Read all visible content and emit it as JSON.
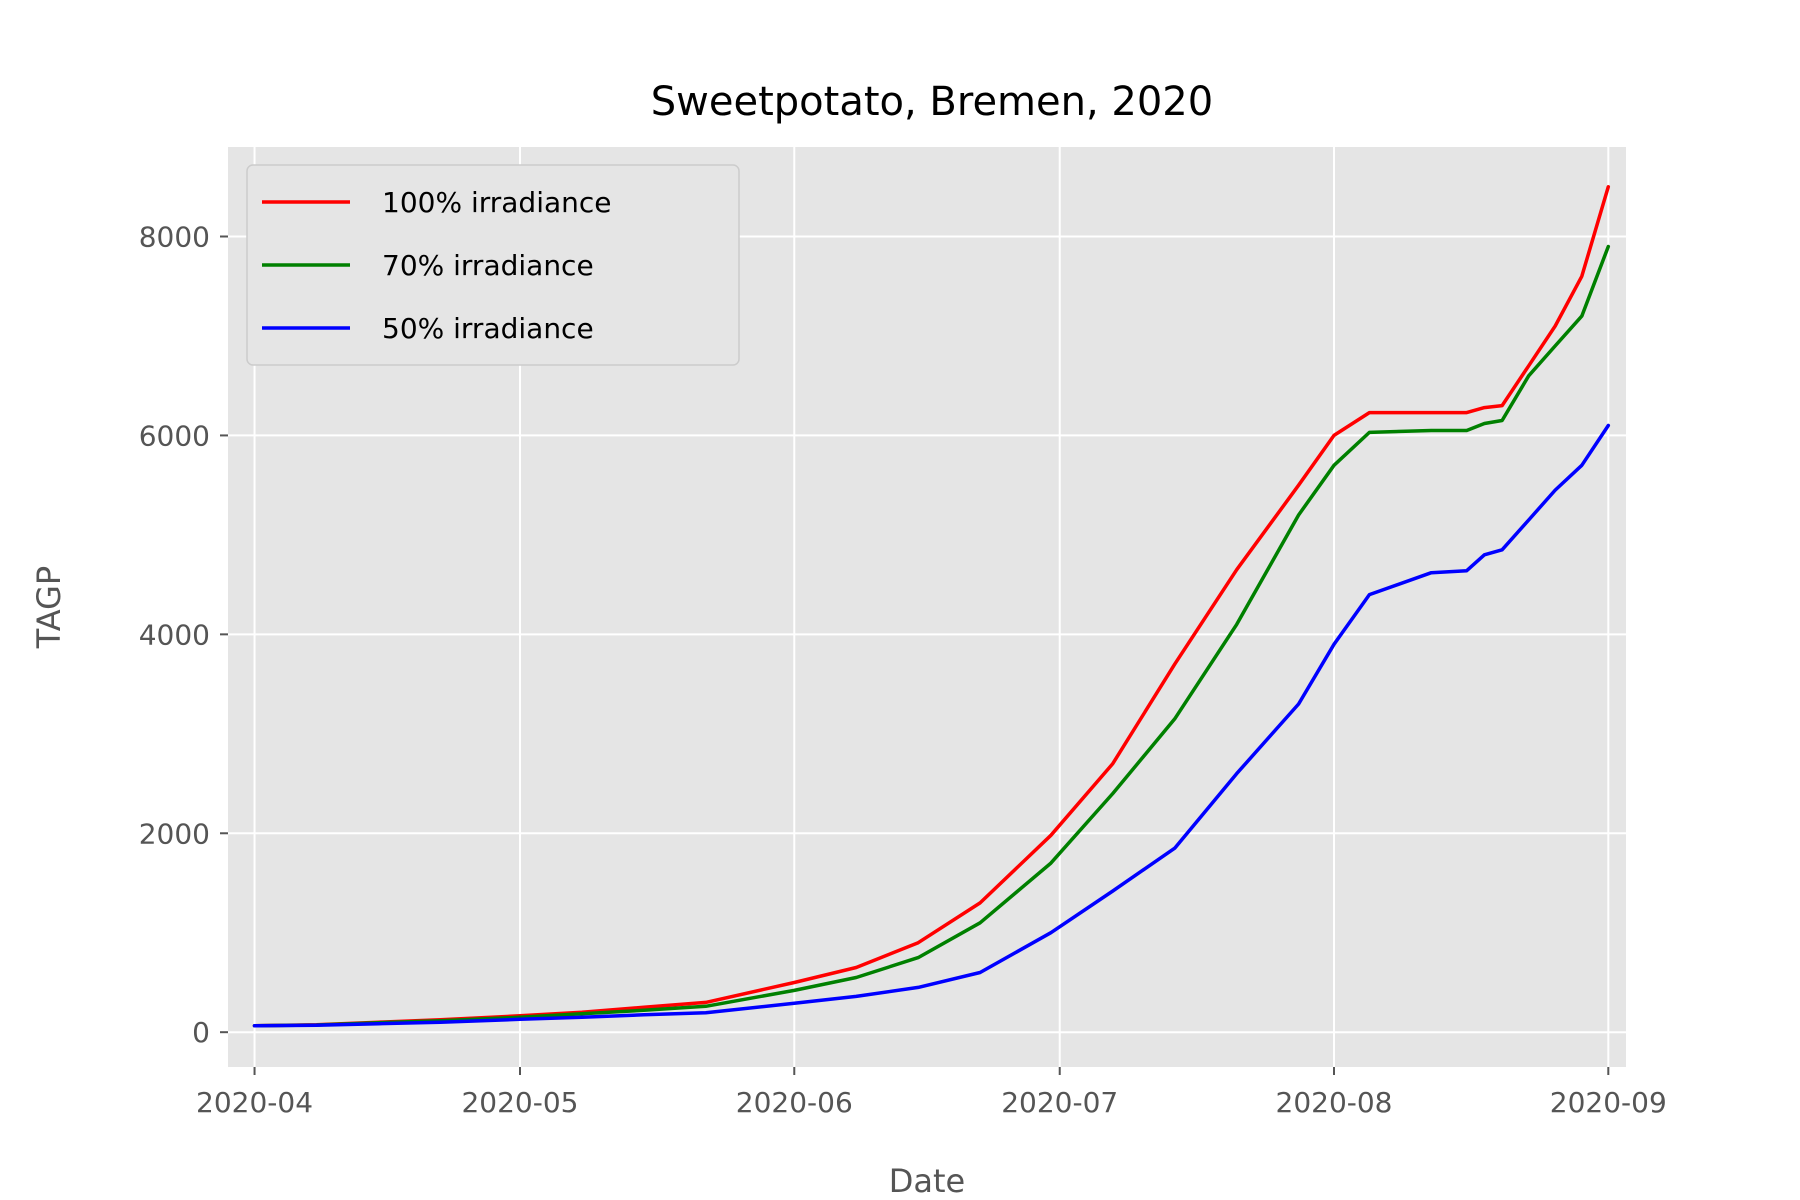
{
  "chart_data": {
    "type": "line",
    "title": "Sweetpotato, Bremen, 2020",
    "xlabel": "Date",
    "ylabel": "TAGP",
    "x_ticks": [
      "2020-04",
      "2020-05",
      "2020-06",
      "2020-07",
      "2020-08",
      "2020-09"
    ],
    "y_ticks": [
      "0",
      "2000",
      "4000",
      "6000",
      "8000"
    ],
    "xlim": [
      "2020-03-29",
      "2020-09-03"
    ],
    "ylim": [
      -350,
      8900
    ],
    "grid": true,
    "legend_position": "top-left",
    "series": [
      {
        "name": "100% irradiance",
        "color": "#ff0000",
        "points": [
          [
            "2020-04-01",
            65
          ],
          [
            "2020-04-08",
            75
          ],
          [
            "2020-04-15",
            100
          ],
          [
            "2020-04-22",
            125
          ],
          [
            "2020-05-01",
            165
          ],
          [
            "2020-05-08",
            200
          ],
          [
            "2020-05-15",
            250
          ],
          [
            "2020-05-22",
            300
          ],
          [
            "2020-06-01",
            500
          ],
          [
            "2020-06-08",
            650
          ],
          [
            "2020-06-15",
            900
          ],
          [
            "2020-06-22",
            1300
          ],
          [
            "2020-06-30",
            1980
          ],
          [
            "2020-07-07",
            2700
          ],
          [
            "2020-07-14",
            3700
          ],
          [
            "2020-07-21",
            4650
          ],
          [
            "2020-07-28",
            5500
          ],
          [
            "2020-08-01",
            6000
          ],
          [
            "2020-08-05",
            6230
          ],
          [
            "2020-08-12",
            6230
          ],
          [
            "2020-08-16",
            6230
          ],
          [
            "2020-08-18",
            6280
          ],
          [
            "2020-08-20",
            6300
          ],
          [
            "2020-08-23",
            6700
          ],
          [
            "2020-08-26",
            7100
          ],
          [
            "2020-08-29",
            7600
          ],
          [
            "2020-09-01",
            8500
          ]
        ]
      },
      {
        "name": "70% irradiance",
        "color": "#008000",
        "points": [
          [
            "2020-04-01",
            65
          ],
          [
            "2020-04-08",
            72
          ],
          [
            "2020-04-15",
            95
          ],
          [
            "2020-04-22",
            115
          ],
          [
            "2020-05-01",
            150
          ],
          [
            "2020-05-08",
            185
          ],
          [
            "2020-05-15",
            220
          ],
          [
            "2020-05-22",
            260
          ],
          [
            "2020-06-01",
            420
          ],
          [
            "2020-06-08",
            550
          ],
          [
            "2020-06-15",
            750
          ],
          [
            "2020-06-22",
            1100
          ],
          [
            "2020-06-30",
            1700
          ],
          [
            "2020-07-07",
            2400
          ],
          [
            "2020-07-14",
            3150
          ],
          [
            "2020-07-21",
            4100
          ],
          [
            "2020-07-28",
            5200
          ],
          [
            "2020-08-01",
            5700
          ],
          [
            "2020-08-05",
            6030
          ],
          [
            "2020-08-12",
            6050
          ],
          [
            "2020-08-16",
            6050
          ],
          [
            "2020-08-18",
            6120
          ],
          [
            "2020-08-20",
            6150
          ],
          [
            "2020-08-23",
            6600
          ],
          [
            "2020-08-26",
            6900
          ],
          [
            "2020-08-29",
            7200
          ],
          [
            "2020-09-01",
            7900
          ]
        ]
      },
      {
        "name": "50% irradiance",
        "color": "#0000ff",
        "points": [
          [
            "2020-04-01",
            65
          ],
          [
            "2020-04-08",
            70
          ],
          [
            "2020-04-15",
            85
          ],
          [
            "2020-04-22",
            100
          ],
          [
            "2020-05-01",
            130
          ],
          [
            "2020-05-08",
            150
          ],
          [
            "2020-05-15",
            175
          ],
          [
            "2020-05-22",
            195
          ],
          [
            "2020-06-01",
            290
          ],
          [
            "2020-06-08",
            360
          ],
          [
            "2020-06-15",
            450
          ],
          [
            "2020-06-22",
            600
          ],
          [
            "2020-06-30",
            1000
          ],
          [
            "2020-07-07",
            1420
          ],
          [
            "2020-07-14",
            1850
          ],
          [
            "2020-07-21",
            2600
          ],
          [
            "2020-07-28",
            3300
          ],
          [
            "2020-08-01",
            3900
          ],
          [
            "2020-08-05",
            4400
          ],
          [
            "2020-08-12",
            4620
          ],
          [
            "2020-08-16",
            4640
          ],
          [
            "2020-08-18",
            4800
          ],
          [
            "2020-08-20",
            4850
          ],
          [
            "2020-08-23",
            5150
          ],
          [
            "2020-08-26",
            5450
          ],
          [
            "2020-08-29",
            5700
          ],
          [
            "2020-09-01",
            6100
          ]
        ]
      }
    ]
  }
}
